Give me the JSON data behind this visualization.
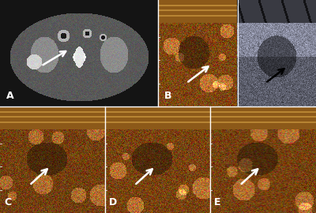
{
  "panels_axes": {
    "A": [
      0.0,
      0.5,
      0.5,
      0.5
    ],
    "B": [
      0.5,
      0.5,
      0.5,
      0.5
    ],
    "C": [
      0.0,
      0.0,
      0.3325,
      0.5
    ],
    "D": [
      0.3325,
      0.0,
      0.3325,
      0.5
    ],
    "E": [
      0.665,
      0.0,
      0.335,
      0.5
    ]
  },
  "outer_bg": "#1a1a1a",
  "label_fontsize": 9,
  "arrow_lw": 1.8,
  "arrow_mutation_scale": 12
}
